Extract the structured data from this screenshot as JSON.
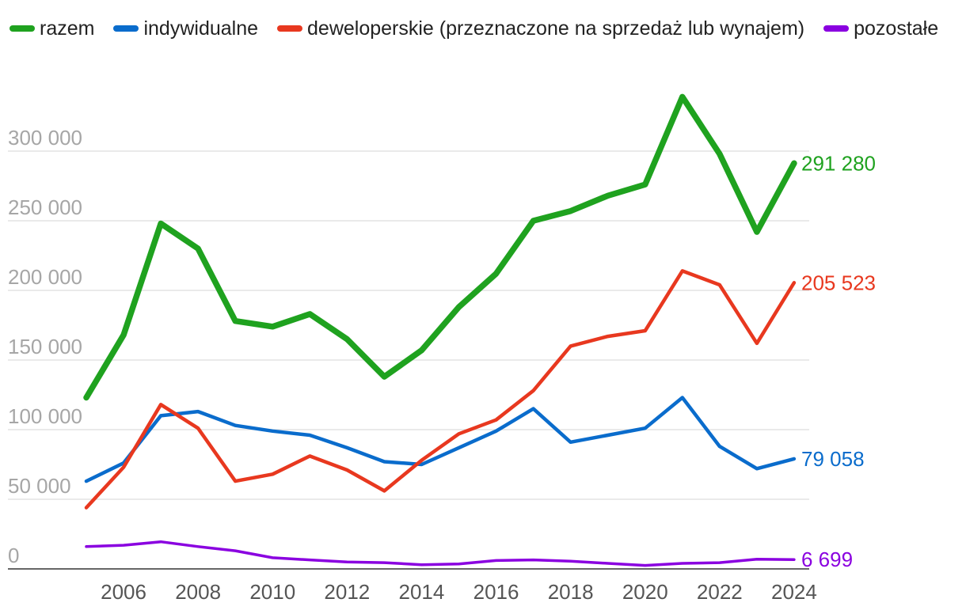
{
  "chart_data": {
    "type": "line",
    "x": [
      2005,
      2006,
      2007,
      2008,
      2009,
      2010,
      2011,
      2012,
      2013,
      2014,
      2015,
      2016,
      2017,
      2018,
      2019,
      2020,
      2021,
      2022,
      2023,
      2024
    ],
    "series": [
      {
        "name": "razem",
        "color": "#1fa21f",
        "values": [
          123000,
          168000,
          248000,
          230000,
          178000,
          174000,
          183000,
          165000,
          138000,
          157000,
          188000,
          212000,
          250000,
          257000,
          268000,
          276000,
          339000,
          298000,
          242000,
          291280
        ],
        "end_label": "291 280"
      },
      {
        "name": "indywidualne",
        "color": "#0a6ccc",
        "values": [
          63000,
          76000,
          110000,
          113000,
          103000,
          99000,
          96000,
          87000,
          77000,
          75000,
          87000,
          99000,
          115000,
          91000,
          96000,
          101000,
          123000,
          88000,
          72000,
          79058
        ],
        "end_label": "79 058"
      },
      {
        "name": "deweloperskie (przeznaczone na sprzedaż lub wynajem)",
        "color": "#e8381f",
        "values": [
          44000,
          73000,
          118000,
          101000,
          63000,
          68000,
          81000,
          71000,
          56000,
          78000,
          97000,
          107000,
          128000,
          160000,
          167000,
          171000,
          214000,
          204000,
          162000,
          205523
        ],
        "end_label": "205 523"
      },
      {
        "name": "pozostałe",
        "color": "#8a00e0",
        "values": [
          16000,
          17000,
          19500,
          16000,
          13000,
          8000,
          6500,
          5000,
          4500,
          3000,
          3500,
          6000,
          6500,
          5500,
          4000,
          2500,
          4000,
          4500,
          7000,
          6699
        ],
        "end_label": "6 699"
      }
    ],
    "yticks": [
      0,
      50000,
      100000,
      150000,
      200000,
      250000,
      300000
    ],
    "ytick_labels": [
      "0",
      "50 000",
      "100 000",
      "150 000",
      "200 000",
      "250 000",
      "300 000"
    ],
    "xticks": [
      2006,
      2008,
      2010,
      2012,
      2014,
      2016,
      2018,
      2020,
      2022,
      2024
    ],
    "xtick_labels": [
      "2006",
      "2008",
      "2010",
      "2012",
      "2014",
      "2016",
      "2018",
      "2020",
      "2022",
      "2024"
    ],
    "ylim": [
      0,
      340000
    ],
    "title": "",
    "xlabel": "",
    "ylabel": "",
    "grid": true,
    "legend_position": "top"
  }
}
